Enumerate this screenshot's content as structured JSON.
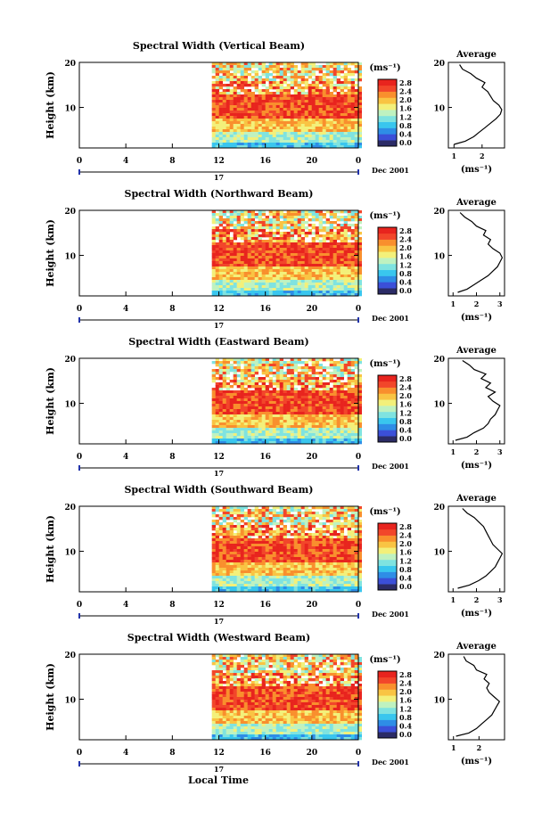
{
  "figure": {
    "xlabel": "Local Time",
    "date_label": "Dec 2001",
    "day_label": "17"
  },
  "chart_data": [
    {
      "type": "heatmap",
      "title": "Spectral Width (Vertical Beam)",
      "ylabel": "Height (km)",
      "xticks": [
        "0",
        "4",
        "8",
        "12",
        "16",
        "20",
        "0"
      ],
      "yticks": [
        "10",
        "20"
      ],
      "xlim": [
        0,
        24
      ],
      "ylim": [
        1,
        20
      ],
      "data_start_hour": 11.4,
      "colorbar": {
        "unit": "(ms⁻¹)",
        "ticks": [
          "2.8",
          "2.4",
          "2.0",
          "1.6",
          "1.2",
          "0.8",
          "0.4",
          "0.0"
        ]
      },
      "profile": {
        "title": "Average",
        "xlabel": "(ms⁻¹)",
        "xticks": [
          "1",
          "2"
        ],
        "xlim": [
          0.8,
          2.8
        ],
        "height": [
          1.8,
          2.5,
          3.5,
          4.5,
          5.5,
          6.5,
          7.5,
          8.5,
          9.5,
          10.5,
          11.5,
          12.5,
          13.5,
          14.5,
          15.5,
          16.5,
          17.5,
          18.5,
          19.5
        ],
        "values": [
          1.0,
          1.4,
          1.7,
          1.9,
          2.1,
          2.3,
          2.5,
          2.65,
          2.7,
          2.6,
          2.4,
          2.3,
          2.2,
          2.0,
          2.1,
          1.8,
          1.6,
          1.3,
          1.2
        ]
      }
    },
    {
      "type": "heatmap",
      "title": "Spectral Width (Northward Beam)",
      "ylabel": "Height (km)",
      "xticks": [
        "0",
        "4",
        "8",
        "12",
        "16",
        "20",
        "0"
      ],
      "yticks": [
        "10",
        "20"
      ],
      "xlim": [
        0,
        24
      ],
      "ylim": [
        1,
        20
      ],
      "data_start_hour": 11.4,
      "colorbar": {
        "unit": "(ms⁻¹)",
        "ticks": [
          "2.8",
          "2.4",
          "2.0",
          "1.6",
          "1.2",
          "0.8",
          "0.4",
          "0.0"
        ]
      },
      "profile": {
        "title": "Average",
        "xlabel": "(ms⁻¹)",
        "xticks": [
          "1",
          "2",
          "3"
        ],
        "xlim": [
          0.8,
          3.2
        ],
        "height": [
          1.8,
          2.5,
          3.5,
          4.5,
          5.5,
          6.5,
          7.5,
          8.5,
          9.5,
          10.5,
          11.5,
          12.5,
          13.5,
          14.5,
          15.5,
          16.5,
          17.5,
          18.5,
          19.5
        ],
        "values": [
          1.2,
          1.6,
          1.9,
          2.2,
          2.5,
          2.7,
          2.9,
          3.0,
          3.1,
          3.0,
          2.7,
          2.5,
          2.6,
          2.3,
          2.4,
          2.0,
          1.8,
          1.5,
          1.3
        ]
      }
    },
    {
      "type": "heatmap",
      "title": "Spectral Width (Eastward Beam)",
      "ylabel": "Height (km)",
      "xticks": [
        "0",
        "4",
        "8",
        "12",
        "16",
        "20",
        "0"
      ],
      "yticks": [
        "10",
        "20"
      ],
      "xlim": [
        0,
        24
      ],
      "ylim": [
        1,
        20
      ],
      "data_start_hour": 11.4,
      "colorbar": {
        "unit": "(ms⁻¹)",
        "ticks": [
          "2.8",
          "2.4",
          "2.0",
          "1.6",
          "1.2",
          "0.8",
          "0.4",
          "0.0"
        ]
      },
      "profile": {
        "title": "Average",
        "xlabel": "(ms⁻¹)",
        "xticks": [
          "1",
          "2",
          "3"
        ],
        "xlim": [
          0.8,
          3.2
        ],
        "height": [
          1.8,
          2.5,
          3.5,
          4.5,
          5.5,
          6.5,
          7.5,
          8.5,
          9.5,
          10.5,
          11.5,
          12.5,
          13.5,
          14.5,
          15.5,
          16.5,
          17.5,
          18.5,
          19.5
        ],
        "values": [
          1.1,
          1.6,
          1.9,
          2.3,
          2.5,
          2.6,
          2.8,
          2.9,
          3.0,
          2.7,
          2.5,
          2.8,
          2.4,
          2.6,
          2.2,
          2.4,
          1.9,
          1.7,
          1.4
        ]
      }
    },
    {
      "type": "heatmap",
      "title": "Spectral Width (Southward Beam)",
      "ylabel": "Height (km)",
      "xticks": [
        "0",
        "4",
        "8",
        "12",
        "16",
        "20",
        "0"
      ],
      "yticks": [
        "10",
        "20"
      ],
      "xlim": [
        0,
        24
      ],
      "ylim": [
        1,
        20
      ],
      "data_start_hour": 11.4,
      "colorbar": {
        "unit": "(ms⁻¹)",
        "ticks": [
          "2.8",
          "2.4",
          "2.0",
          "1.6",
          "1.2",
          "0.8",
          "0.4",
          "0.0"
        ]
      },
      "profile": {
        "title": "Average",
        "xlabel": "(ms⁻¹)",
        "xticks": [
          "1",
          "2",
          "3"
        ],
        "xlim": [
          0.8,
          3.2
        ],
        "height": [
          1.8,
          2.5,
          3.5,
          4.5,
          5.5,
          6.5,
          7.5,
          8.5,
          9.5,
          10.5,
          11.5,
          12.5,
          13.5,
          14.5,
          15.5,
          16.5,
          17.5,
          18.5,
          19.5
        ],
        "values": [
          1.2,
          1.7,
          2.1,
          2.4,
          2.6,
          2.8,
          2.9,
          3.0,
          3.1,
          2.9,
          2.7,
          2.6,
          2.5,
          2.4,
          2.3,
          2.1,
          1.9,
          1.6,
          1.4
        ]
      }
    },
    {
      "type": "heatmap",
      "title": "Spectral Width (Westward Beam)",
      "ylabel": "Height (km)",
      "xticks": [
        "0",
        "4",
        "8",
        "12",
        "16",
        "20",
        "0"
      ],
      "yticks": [
        "10",
        "20"
      ],
      "xlim": [
        0,
        24
      ],
      "ylim": [
        1,
        20
      ],
      "data_start_hour": 11.4,
      "colorbar": {
        "unit": "(ms⁻¹)",
        "ticks": [
          "2.8",
          "2.4",
          "2.0",
          "1.6",
          "1.2",
          "0.8",
          "0.4",
          "0.0"
        ]
      },
      "profile": {
        "title": "Average",
        "xlabel": "(ms⁻¹)",
        "xticks": [
          "1",
          "2"
        ],
        "xlim": [
          0.8,
          3.0
        ],
        "height": [
          1.8,
          2.5,
          3.5,
          4.5,
          5.5,
          6.5,
          7.5,
          8.5,
          9.5,
          10.5,
          11.5,
          12.5,
          13.5,
          14.5,
          15.5,
          16.5,
          17.5,
          18.5,
          19.5
        ],
        "values": [
          1.1,
          1.6,
          1.9,
          2.1,
          2.3,
          2.5,
          2.6,
          2.7,
          2.8,
          2.6,
          2.4,
          2.3,
          2.4,
          2.2,
          2.3,
          1.9,
          1.8,
          1.5,
          1.4
        ]
      }
    }
  ],
  "colors": {
    "scale": [
      "#2b2b66",
      "#3b4fd8",
      "#2e8de6",
      "#39c6ee",
      "#7fe3e0",
      "#bff2c0",
      "#f3f07a",
      "#f9c443",
      "#f98f2d",
      "#f2462a",
      "#e8241e"
    ]
  }
}
